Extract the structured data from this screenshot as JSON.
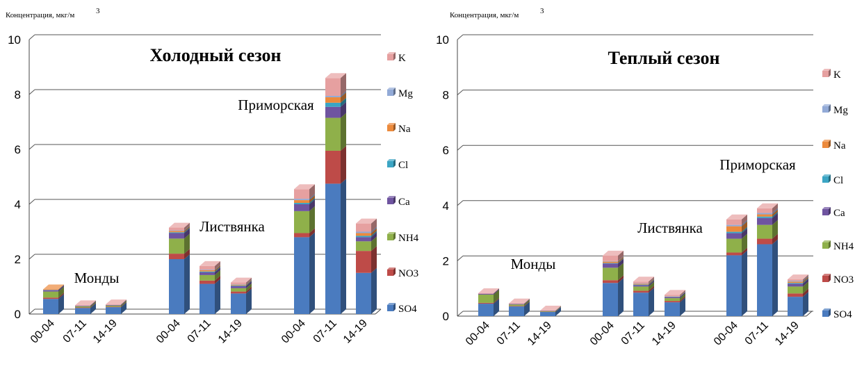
{
  "colors": {
    "SO4": "#4a7bbf",
    "NO3": "#be4b48",
    "NH4": "#8fb04a",
    "Ca": "#6f54a0",
    "Cl": "#3ba5c4",
    "Na": "#ec8a3c",
    "Mg": "#92aad7",
    "K": "#e6a0a0"
  },
  "chart_data": [
    {
      "type": "bar",
      "stacked": true,
      "title": "Холодный сезон",
      "ylabel": "Концентрация, мкг/м",
      "ylabel_sup": "3",
      "ylim": [
        0,
        10
      ],
      "yticks": [
        "0",
        "2",
        "4",
        "6",
        "8",
        "10"
      ],
      "grid": true,
      "legend_position": "right",
      "legend": [
        "K",
        "Mg",
        "Na",
        "Cl",
        "Ca",
        "NH4",
        "NO3",
        "SO4"
      ],
      "categories": [
        "00-04",
        "07-11",
        "14-19",
        "00-04",
        "07-11",
        "14-19",
        "00-04",
        "07-11",
        "14-19"
      ],
      "groups": [
        {
          "label": "Монды",
          "indices": [
            0,
            1,
            2
          ]
        },
        {
          "label": "Листвянка",
          "indices": [
            3,
            4,
            5
          ]
        },
        {
          "label": "Приморская",
          "indices": [
            6,
            7,
            8
          ]
        }
      ],
      "series": [
        {
          "name": "SO4",
          "values": [
            0.55,
            0.22,
            0.25,
            2.0,
            1.1,
            0.75,
            2.8,
            4.75,
            1.5
          ]
        },
        {
          "name": "NO3",
          "values": [
            0.05,
            0.02,
            0.02,
            0.2,
            0.12,
            0.07,
            0.15,
            1.2,
            0.8
          ]
        },
        {
          "name": "NH4",
          "values": [
            0.22,
            0.04,
            0.04,
            0.55,
            0.2,
            0.12,
            0.8,
            1.2,
            0.35
          ]
        },
        {
          "name": "Ca",
          "values": [
            0.05,
            0.02,
            0.02,
            0.2,
            0.1,
            0.08,
            0.25,
            0.4,
            0.15
          ]
        },
        {
          "name": "Cl",
          "values": [
            0.01,
            0.0,
            0.0,
            0.03,
            0.03,
            0.02,
            0.05,
            0.15,
            0.05
          ]
        },
        {
          "name": "Na",
          "values": [
            0.02,
            0.0,
            0.0,
            0.05,
            0.05,
            0.03,
            0.1,
            0.2,
            0.1
          ]
        },
        {
          "name": "Mg",
          "values": [
            0.0,
            0.0,
            0.0,
            0.02,
            0.02,
            0.02,
            0.05,
            0.05,
            0.05
          ]
        },
        {
          "name": "K",
          "values": [
            0.0,
            0.02,
            0.02,
            0.1,
            0.13,
            0.06,
            0.35,
            0.65,
            0.3
          ]
        }
      ]
    },
    {
      "type": "bar",
      "stacked": true,
      "title": "Теплый сезон",
      "ylabel": "Концентрация, мкг/м",
      "ylabel_sup": "3",
      "ylim": [
        0,
        10
      ],
      "yticks": [
        "0",
        "2",
        "4",
        "6",
        "8",
        "10"
      ],
      "grid": true,
      "legend_position": "right",
      "legend": [
        "K",
        "Mg",
        "Na",
        "Cl",
        "Ca",
        "NH4",
        "NO3",
        "SO4"
      ],
      "categories": [
        "00-04",
        "07-11",
        "14-19",
        "00-04",
        "07-11",
        "14-19",
        "00-04",
        "07-11",
        "14-19"
      ],
      "groups": [
        {
          "label": "Монды",
          "indices": [
            0,
            1,
            2
          ]
        },
        {
          "label": "Листвянка",
          "indices": [
            3,
            4,
            5
          ]
        },
        {
          "label": "Приморская",
          "indices": [
            6,
            7,
            8
          ]
        }
      ],
      "series": [
        {
          "name": "SO4",
          "values": [
            0.45,
            0.35,
            0.15,
            1.2,
            0.85,
            0.5,
            2.2,
            2.6,
            0.7
          ]
        },
        {
          "name": "NO3",
          "values": [
            0.03,
            0.02,
            0.01,
            0.1,
            0.07,
            0.05,
            0.1,
            0.2,
            0.12
          ]
        },
        {
          "name": "NH4",
          "values": [
            0.3,
            0.05,
            0.02,
            0.45,
            0.15,
            0.1,
            0.5,
            0.5,
            0.25
          ]
        },
        {
          "name": "Ca",
          "values": [
            0.03,
            0.02,
            0.01,
            0.15,
            0.05,
            0.04,
            0.2,
            0.25,
            0.1
          ]
        },
        {
          "name": "Cl",
          "values": [
            0.0,
            0.0,
            0.0,
            0.02,
            0.02,
            0.01,
            0.05,
            0.05,
            0.03
          ]
        },
        {
          "name": "Na",
          "values": [
            0.0,
            0.0,
            0.0,
            0.05,
            0.03,
            0.01,
            0.2,
            0.08,
            0.05
          ]
        },
        {
          "name": "Mg",
          "values": [
            0.0,
            0.0,
            0.0,
            0.02,
            0.02,
            0.01,
            0.05,
            0.05,
            0.03
          ]
        },
        {
          "name": "K",
          "values": [
            0.02,
            0.02,
            0.01,
            0.2,
            0.06,
            0.05,
            0.2,
            0.17,
            0.05
          ]
        }
      ]
    }
  ]
}
